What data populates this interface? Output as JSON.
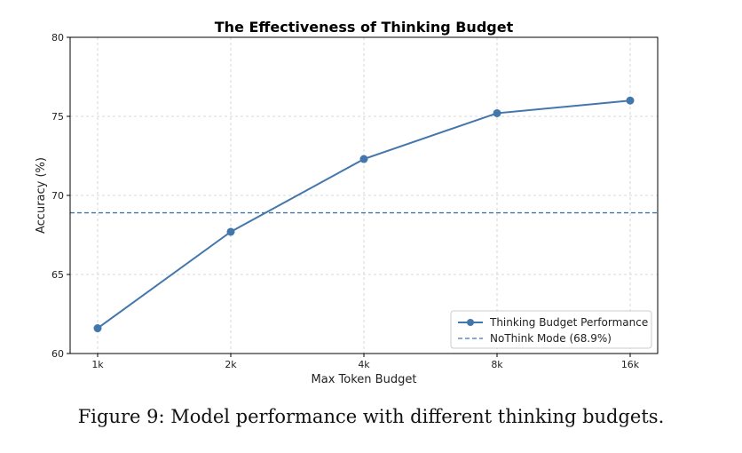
{
  "chart_data": {
    "type": "line",
    "title": "The Effectiveness of Thinking Budget",
    "xlabel": "Max Token Budget",
    "ylabel": "Accuracy (%)",
    "categories": [
      "1k",
      "2k",
      "4k",
      "8k",
      "16k"
    ],
    "ylim": [
      60,
      80
    ],
    "yticks": [
      60,
      65,
      70,
      75,
      80
    ],
    "grid": true,
    "legend_position": "bottom-right",
    "series": [
      {
        "name": "Thinking Budget Performance",
        "values": [
          61.6,
          67.7,
          72.3,
          75.2,
          76.0
        ],
        "color": "#4377ac"
      }
    ],
    "reference_line": {
      "name": "NoThink Mode (68.9%)",
      "value": 68.9,
      "color": "#4377ac"
    }
  },
  "caption": "Figure 9: Model performance with different thinking budgets."
}
